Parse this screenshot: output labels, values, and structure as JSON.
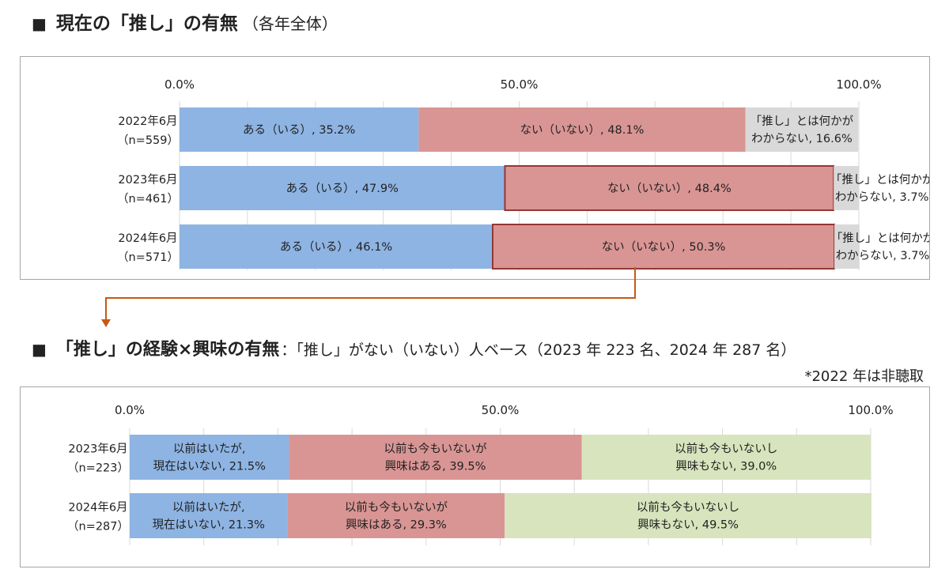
{
  "section1": {
    "marker": "■",
    "title": "現在の「推し」の有無",
    "subtitle": "（各年全体）"
  },
  "section2": {
    "marker": "■",
    "title": "「推し」の経験×興味の有無",
    "subtitle": "：「推し」がない（いない）人ベース（2023 年 223 名、2024 年 287 名）",
    "note": "*2022 年は非聴取"
  },
  "chart_data": [
    {
      "type": "bar",
      "orientation": "horizontal-stacked-100",
      "xlim": [
        0,
        100
      ],
      "tick_labels": [
        "0.0%",
        "50.0%",
        "100.0%"
      ],
      "categories": [
        [
          "2022年6月",
          "（n=559）"
        ],
        [
          "2023年6月",
          "（n=461）"
        ],
        [
          "2024年6月",
          "（n=571）"
        ]
      ],
      "series": [
        {
          "color": "#8eb4e3",
          "values": [
            35.2,
            47.9,
            46.1
          ],
          "labels": [
            [
              "ある（いる）, 35.2%"
            ],
            [
              "ある（いる）, 47.9%"
            ],
            [
              "ある（いる）, 46.1%"
            ]
          ]
        },
        {
          "color": "#d99594",
          "values": [
            48.1,
            48.4,
            50.3
          ],
          "labels": [
            [
              "ない（いない）, 48.1%"
            ],
            [
              "ない（いない）, 48.4%"
            ],
            [
              "ない（いない）, 50.3%"
            ]
          ]
        },
        {
          "color": "#d9d9d9",
          "values": [
            16.6,
            3.7,
            3.7
          ],
          "labels": [
            [
              "「推し」とは何かが",
              "わからない, 16.6%"
            ],
            [
              "「推し」とは何かが",
              "わからない, 3.7%"
            ],
            [
              "「推し」とは何かが",
              "わからない, 3.7%"
            ]
          ]
        }
      ],
      "highlight_outline": "#953735",
      "highlighted_bars": [
        [
          1,
          1
        ],
        [
          2,
          1
        ]
      ],
      "grid": true
    },
    {
      "type": "bar",
      "orientation": "horizontal-stacked-100",
      "xlim": [
        0,
        100
      ],
      "tick_labels": [
        "0.0%",
        "50.0%",
        "100.0%"
      ],
      "categories": [
        [
          "2023年6月",
          "（n=223）"
        ],
        [
          "2024年6月",
          "（n=287）"
        ]
      ],
      "series": [
        {
          "color": "#8eb4e3",
          "values": [
            21.5,
            21.3
          ],
          "labels": [
            [
              "以前はいたが,",
              "現在はいない, 21.5%"
            ],
            [
              "以前はいたが,",
              "現在はいない, 21.3%"
            ]
          ]
        },
        {
          "color": "#d99594",
          "values": [
            39.5,
            29.3
          ],
          "labels": [
            [
              "以前も今もいないが",
              "興味はある, 39.5%"
            ],
            [
              "以前も今もいないが",
              "興味はある, 29.3%"
            ]
          ]
        },
        {
          "color": "#d7e4bd",
          "values": [
            39.0,
            49.5
          ],
          "labels": [
            [
              "以前も今もいないし",
              "興味もない, 39.0%"
            ],
            [
              "以前も今もいないし",
              "興味もない, 49.5%"
            ]
          ]
        }
      ],
      "grid": true
    }
  ],
  "connector_color": "#c55a11"
}
